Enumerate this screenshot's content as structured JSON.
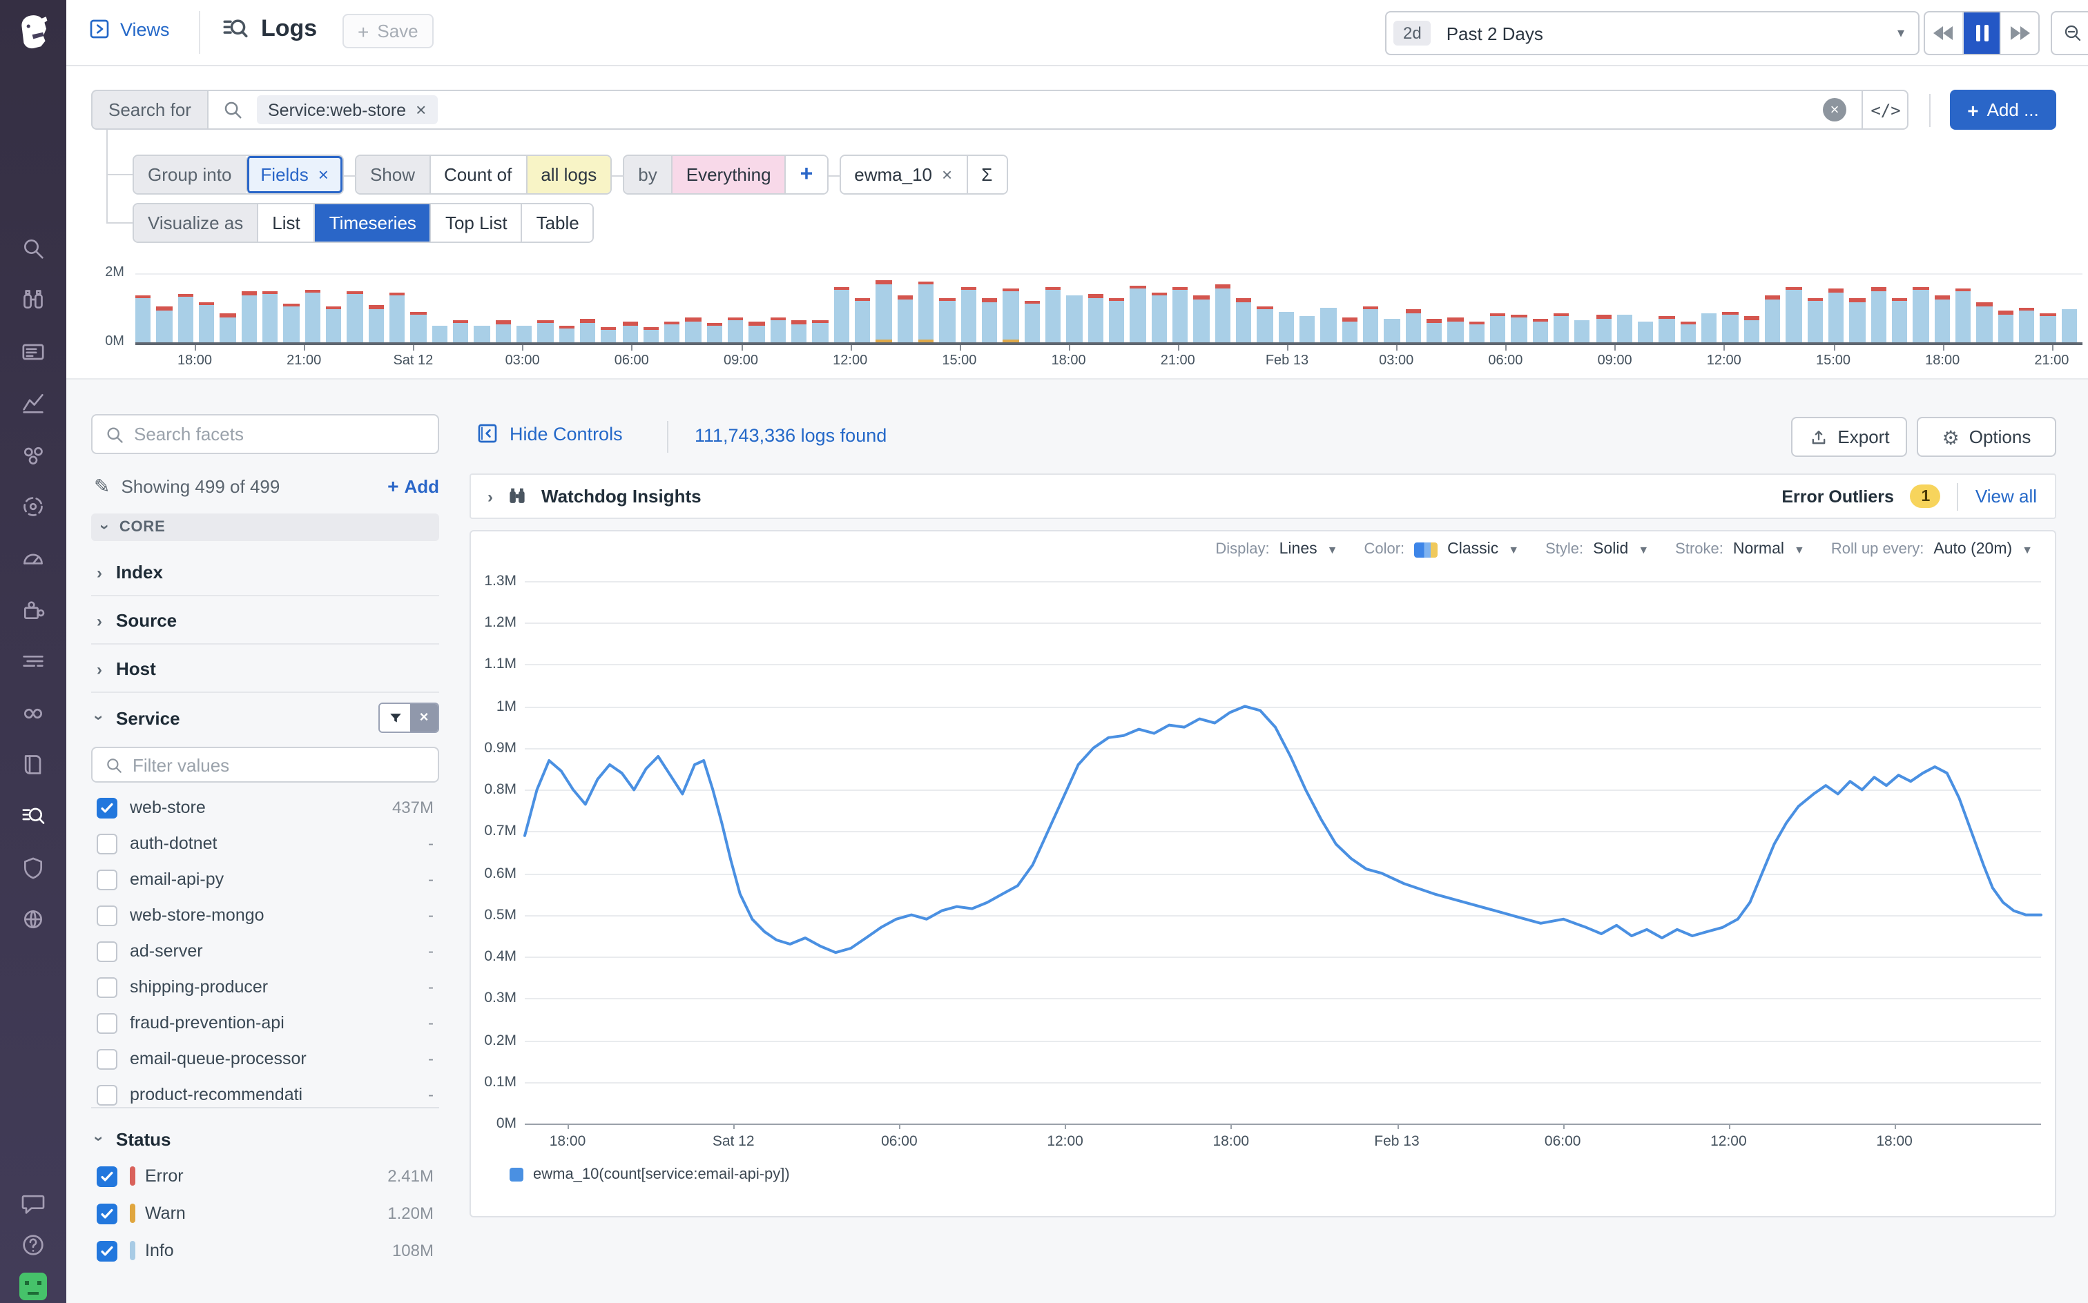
{
  "header": {
    "views_label": "Views",
    "title": "Logs",
    "save_label": "Save"
  },
  "timepicker": {
    "range_short": "2d",
    "range_label": "Past 2 Days"
  },
  "search": {
    "prefix": "Search for",
    "chip_label": "Service:web-store",
    "code_glyph": "</>",
    "add_label": "Add ..."
  },
  "query": {
    "group_into": "Group into",
    "group_value": "Fields",
    "show": "Show",
    "count_of": "Count of",
    "all_logs": "all logs",
    "by": "by",
    "everything": "Everything",
    "plus": "+",
    "measure": "ewma_10",
    "sigma": "Σ"
  },
  "visualize": {
    "label": "Visualize as",
    "options": [
      "List",
      "Timeseries",
      "Top List",
      "Table"
    ],
    "selected": "Timeseries"
  },
  "nav": {
    "items": [
      "search",
      "watchdog",
      "events",
      "metrics",
      "infrastructure",
      "apm",
      "dashboards",
      "integrations",
      "livetail",
      "synthetics",
      "notebooks",
      "logs",
      "security",
      "network"
    ],
    "active": "logs",
    "bottom": [
      "chat",
      "help",
      "avatar"
    ]
  },
  "facet_panel": {
    "search_placeholder": "Search facets",
    "showing_text": "Showing 499 of 499",
    "add_label": "Add",
    "core_label": "CORE",
    "groups": [
      "Index",
      "Source",
      "Host"
    ],
    "service_label": "Service",
    "filter_placeholder": "Filter values",
    "services": [
      {
        "name": "web-store",
        "count": "437M",
        "checked": true
      },
      {
        "name": "auth-dotnet",
        "count": "-",
        "checked": false
      },
      {
        "name": "email-api-py",
        "count": "-",
        "checked": false
      },
      {
        "name": "web-store-mongo",
        "count": "-",
        "checked": false
      },
      {
        "name": "ad-server",
        "count": "-",
        "checked": false
      },
      {
        "name": "shipping-producer",
        "count": "-",
        "checked": false
      },
      {
        "name": "fraud-prevention-api",
        "count": "-",
        "checked": false
      },
      {
        "name": "email-queue-processor",
        "count": "-",
        "checked": false
      },
      {
        "name": "product-recommendati",
        "count": "-",
        "checked": false
      }
    ],
    "status_label": "Status",
    "statuses": [
      {
        "name": "Error",
        "count": "2.41M",
        "color": "#d9625b",
        "checked": true
      },
      {
        "name": "Warn",
        "count": "1.20M",
        "color": "#e0a63f",
        "checked": true
      },
      {
        "name": "Info",
        "count": "108M",
        "color": "#a8cbe5",
        "checked": true
      }
    ]
  },
  "main": {
    "hide_controls": "Hide Controls",
    "logs_found": "111,743,336 logs found",
    "export_label": "Export",
    "options_label": "Options",
    "watchdog_title": "Watchdog Insights",
    "error_outliers_label": "Error Outliers",
    "outlier_count": "1",
    "view_all": "View all"
  },
  "chart_controls": {
    "display_label": "Display:",
    "display": "Lines",
    "color_label": "Color:",
    "color": "Classic",
    "style_label": "Style:",
    "style": "Solid",
    "stroke_label": "Stroke:",
    "stroke": "Normal",
    "rollup_label": "Roll up every:",
    "rollup": "Auto (20m)"
  },
  "chart_data": [
    {
      "type": "bar",
      "title": "log volume by status (stacked, 2-day overview)",
      "unit": "M",
      "ylim": [
        0,
        2
      ],
      "ytick_labels": [
        "0M",
        "2M"
      ],
      "x_labels": [
        "18:00",
        "21:00",
        "Sat 12",
        "03:00",
        "06:00",
        "09:00",
        "12:00",
        "15:00",
        "18:00",
        "21:00",
        "Feb 13",
        "03:00",
        "06:00",
        "09:00",
        "12:00",
        "15:00",
        "18:00",
        "21:00"
      ],
      "colors": {
        "info": "#a9cfe7",
        "error": "#d4554e",
        "warn": "#dfa94a"
      },
      "bars": [
        [
          1.38,
          1,
          0
        ],
        [
          1.03,
          1,
          0
        ],
        [
          1.42,
          1,
          0
        ],
        [
          1.17,
          1,
          0
        ],
        [
          0.84,
          1,
          0
        ],
        [
          1.47,
          1,
          0
        ],
        [
          1.49,
          1,
          0
        ],
        [
          1.13,
          1,
          0
        ],
        [
          1.54,
          1,
          0
        ],
        [
          1.05,
          1,
          0
        ],
        [
          1.5,
          1,
          0
        ],
        [
          1.07,
          1,
          0
        ],
        [
          1.46,
          1,
          0
        ],
        [
          0.9,
          1,
          0
        ],
        [
          0.48,
          0,
          0
        ],
        [
          0.65,
          1,
          0
        ],
        [
          0.47,
          0,
          0
        ],
        [
          0.63,
          1,
          0
        ],
        [
          0.5,
          0,
          0
        ],
        [
          0.66,
          1,
          0
        ],
        [
          0.5,
          1,
          0
        ],
        [
          0.68,
          1,
          0
        ],
        [
          0.46,
          1,
          0
        ],
        [
          0.6,
          1,
          0
        ],
        [
          0.45,
          1,
          0
        ],
        [
          0.62,
          1,
          0
        ],
        [
          0.72,
          1,
          0
        ],
        [
          0.58,
          1,
          0
        ],
        [
          0.73,
          1,
          0
        ],
        [
          0.6,
          1,
          0
        ],
        [
          0.74,
          1,
          0
        ],
        [
          0.64,
          1,
          0
        ],
        [
          0.66,
          1,
          0
        ],
        [
          1.62,
          1,
          0
        ],
        [
          1.3,
          1,
          0
        ],
        [
          1.8,
          1,
          1
        ],
        [
          1.35,
          1,
          0
        ],
        [
          1.78,
          1,
          1
        ],
        [
          1.3,
          1,
          0
        ],
        [
          1.62,
          1,
          0
        ],
        [
          1.28,
          1,
          0
        ],
        [
          1.58,
          1,
          1
        ],
        [
          1.22,
          1,
          0
        ],
        [
          1.62,
          1,
          0
        ],
        [
          1.35,
          0,
          0
        ],
        [
          1.4,
          1,
          0
        ],
        [
          1.3,
          1,
          0
        ],
        [
          1.65,
          1,
          0
        ],
        [
          1.45,
          1,
          0
        ],
        [
          1.62,
          1,
          0
        ],
        [
          1.35,
          1,
          0
        ],
        [
          1.68,
          1,
          0
        ],
        [
          1.28,
          1,
          0
        ],
        [
          1.05,
          1,
          0
        ],
        [
          0.9,
          0,
          0
        ],
        [
          0.75,
          0,
          0
        ],
        [
          1.0,
          0,
          0
        ],
        [
          0.72,
          1,
          0
        ],
        [
          1.05,
          1,
          0
        ],
        [
          0.7,
          0,
          0
        ],
        [
          0.95,
          1,
          0
        ],
        [
          0.68,
          1,
          0
        ],
        [
          0.72,
          1,
          0
        ],
        [
          0.62,
          1,
          0
        ],
        [
          0.85,
          1,
          0
        ],
        [
          0.82,
          1,
          0
        ],
        [
          0.7,
          1,
          0
        ],
        [
          0.85,
          1,
          0
        ],
        [
          0.65,
          0,
          0
        ],
        [
          0.8,
          1,
          0
        ],
        [
          0.8,
          0,
          0
        ],
        [
          0.62,
          0,
          0
        ],
        [
          0.78,
          1,
          0
        ],
        [
          0.62,
          1,
          0
        ],
        [
          0.85,
          0,
          0
        ],
        [
          0.9,
          1,
          0
        ],
        [
          0.75,
          1,
          0
        ],
        [
          1.35,
          1,
          0
        ],
        [
          1.62,
          1,
          0
        ],
        [
          1.3,
          1,
          0
        ],
        [
          1.55,
          1,
          0
        ],
        [
          1.28,
          1,
          0
        ],
        [
          1.6,
          1,
          0
        ],
        [
          1.3,
          1,
          0
        ],
        [
          1.62,
          1,
          0
        ],
        [
          1.35,
          1,
          0
        ],
        [
          1.58,
          1,
          0
        ],
        [
          1.15,
          1,
          0
        ],
        [
          0.92,
          1,
          0
        ],
        [
          1.02,
          1,
          0
        ],
        [
          0.85,
          1,
          0
        ],
        [
          0.95,
          0,
          0
        ]
      ]
    },
    {
      "type": "line",
      "ylim": [
        0,
        1.3
      ],
      "unit": "M",
      "ytick_labels": [
        "0M",
        "0.1M",
        "0.2M",
        "0.3M",
        "0.4M",
        "0.5M",
        "0.6M",
        "0.7M",
        "0.8M",
        "0.9M",
        "1M",
        "1.1M",
        "1.2M",
        "1.3M"
      ],
      "x_labels": [
        "18:00",
        "Sat 12",
        "06:00",
        "12:00",
        "18:00",
        "Feb 13",
        "06:00",
        "12:00",
        "18:00"
      ],
      "grid": true,
      "legend_position": "bottom",
      "series": [
        {
          "name": "ewma_10(count[service:email-api-py])",
          "color": "#4a90e2",
          "points": [
            [
              0,
              0.69
            ],
            [
              0.008,
              0.8
            ],
            [
              0.016,
              0.87
            ],
            [
              0.024,
              0.845
            ],
            [
              0.032,
              0.8
            ],
            [
              0.04,
              0.765
            ],
            [
              0.048,
              0.825
            ],
            [
              0.056,
              0.86
            ],
            [
              0.064,
              0.84
            ],
            [
              0.072,
              0.8
            ],
            [
              0.08,
              0.85
            ],
            [
              0.088,
              0.88
            ],
            [
              0.096,
              0.835
            ],
            [
              0.104,
              0.79
            ],
            [
              0.112,
              0.86
            ],
            [
              0.118,
              0.87
            ],
            [
              0.124,
              0.8
            ],
            [
              0.13,
              0.72
            ],
            [
              0.136,
              0.63
            ],
            [
              0.142,
              0.55
            ],
            [
              0.15,
              0.49
            ],
            [
              0.158,
              0.46
            ],
            [
              0.166,
              0.44
            ],
            [
              0.175,
              0.43
            ],
            [
              0.185,
              0.445
            ],
            [
              0.195,
              0.425
            ],
            [
              0.205,
              0.41
            ],
            [
              0.215,
              0.42
            ],
            [
              0.225,
              0.445
            ],
            [
              0.235,
              0.47
            ],
            [
              0.245,
              0.49
            ],
            [
              0.255,
              0.5
            ],
            [
              0.265,
              0.49
            ],
            [
              0.275,
              0.51
            ],
            [
              0.285,
              0.52
            ],
            [
              0.295,
              0.515
            ],
            [
              0.305,
              0.53
            ],
            [
              0.315,
              0.55
            ],
            [
              0.325,
              0.57
            ],
            [
              0.335,
              0.62
            ],
            [
              0.345,
              0.7
            ],
            [
              0.355,
              0.78
            ],
            [
              0.365,
              0.86
            ],
            [
              0.375,
              0.9
            ],
            [
              0.385,
              0.925
            ],
            [
              0.395,
              0.93
            ],
            [
              0.405,
              0.945
            ],
            [
              0.415,
              0.935
            ],
            [
              0.425,
              0.955
            ],
            [
              0.435,
              0.95
            ],
            [
              0.445,
              0.97
            ],
            [
              0.455,
              0.96
            ],
            [
              0.465,
              0.985
            ],
            [
              0.475,
              1.0
            ],
            [
              0.485,
              0.99
            ],
            [
              0.495,
              0.95
            ],
            [
              0.505,
              0.88
            ],
            [
              0.515,
              0.8
            ],
            [
              0.525,
              0.73
            ],
            [
              0.535,
              0.67
            ],
            [
              0.545,
              0.635
            ],
            [
              0.555,
              0.61
            ],
            [
              0.565,
              0.6
            ],
            [
              0.58,
              0.575
            ],
            [
              0.6,
              0.55
            ],
            [
              0.62,
              0.53
            ],
            [
              0.64,
              0.51
            ],
            [
              0.655,
              0.495
            ],
            [
              0.67,
              0.48
            ],
            [
              0.685,
              0.49
            ],
            [
              0.7,
              0.47
            ],
            [
              0.71,
              0.455
            ],
            [
              0.72,
              0.475
            ],
            [
              0.73,
              0.45
            ],
            [
              0.74,
              0.465
            ],
            [
              0.75,
              0.445
            ],
            [
              0.76,
              0.465
            ],
            [
              0.77,
              0.45
            ],
            [
              0.78,
              0.46
            ],
            [
              0.79,
              0.47
            ],
            [
              0.8,
              0.49
            ],
            [
              0.808,
              0.53
            ],
            [
              0.816,
              0.6
            ],
            [
              0.824,
              0.67
            ],
            [
              0.832,
              0.72
            ],
            [
              0.84,
              0.76
            ],
            [
              0.85,
              0.79
            ],
            [
              0.858,
              0.81
            ],
            [
              0.866,
              0.79
            ],
            [
              0.874,
              0.82
            ],
            [
              0.882,
              0.8
            ],
            [
              0.89,
              0.83
            ],
            [
              0.898,
              0.81
            ],
            [
              0.906,
              0.835
            ],
            [
              0.914,
              0.82
            ],
            [
              0.922,
              0.84
            ],
            [
              0.93,
              0.855
            ],
            [
              0.938,
              0.84
            ],
            [
              0.946,
              0.78
            ],
            [
              0.954,
              0.7
            ],
            [
              0.962,
              0.62
            ],
            [
              0.968,
              0.565
            ],
            [
              0.975,
              0.53
            ],
            [
              0.982,
              0.51
            ],
            [
              0.99,
              0.5
            ],
            [
              1,
              0.5
            ]
          ]
        }
      ]
    }
  ]
}
